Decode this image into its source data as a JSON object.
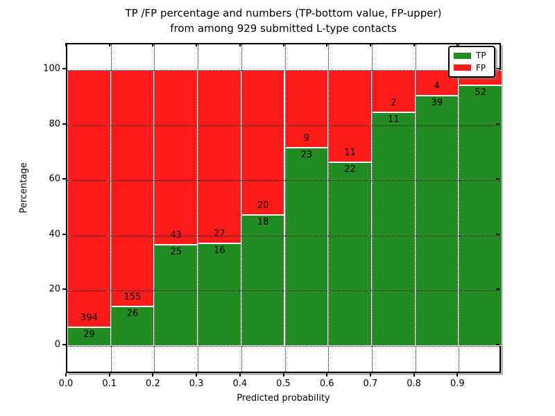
{
  "title": {
    "line1": "TP /FP percentage and numbers (TP-bottom value, FP-upper)",
    "line2": "from among 929 submitted L-type contacts"
  },
  "chart_data": {
    "type": "bar",
    "stacked": true,
    "normalized_to_percent": true,
    "title": "TP /FP percentage and numbers (TP-bottom value, FP-upper)\nfrom among 929 submitted L-type contacts",
    "xlabel": "Predicted probability",
    "ylabel": "Percentage",
    "total_submitted": 929,
    "xticks": [
      "0.0",
      "0.1",
      "0.2",
      "0.3",
      "0.4",
      "0.5",
      "0.6",
      "0.7",
      "0.8",
      "0.9"
    ],
    "yticks": [
      0,
      20,
      40,
      60,
      80,
      100
    ],
    "xlim": [
      0.0,
      1.0
    ],
    "ylim": [
      -10.5,
      110
    ],
    "bin_width": 0.1,
    "grid": "dotted",
    "series": [
      {
        "name": "TP",
        "color": "#228b22",
        "counts": [
          29,
          26,
          25,
          16,
          18,
          23,
          22,
          11,
          39,
          52
        ]
      },
      {
        "name": "FP",
        "color": "#ff1a1a",
        "counts": [
          394,
          155,
          43,
          27,
          20,
          9,
          11,
          2,
          4,
          null
        ]
      }
    ],
    "tp_percent": [
      6.9,
      14.4,
      36.8,
      37.2,
      47.4,
      71.9,
      66.7,
      84.6,
      90.7,
      94.5
    ],
    "legend": {
      "position": "upper right",
      "entries": [
        {
          "label": "TP",
          "color": "#228b22"
        },
        {
          "label": "FP",
          "color": "#ff1a1a"
        }
      ]
    }
  }
}
